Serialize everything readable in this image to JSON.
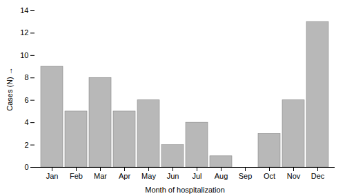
{
  "chart_data": {
    "type": "bar",
    "categories": [
      "Jan",
      "Feb",
      "Mar",
      "Apr",
      "May",
      "Jun",
      "Jul",
      "Aug",
      "Sep",
      "Oct",
      "Nov",
      "Dec"
    ],
    "values": [
      9,
      5,
      8,
      5,
      6,
      2,
      4,
      1,
      0,
      3,
      6,
      13
    ],
    "color": "#b8b8b8",
    "xlabel": "Month of hospitalization",
    "ylabel": "Cases (N)",
    "ylim": [
      0,
      14
    ],
    "yticks": [
      0,
      2,
      4,
      6,
      8,
      10,
      12,
      14
    ],
    "grid": false
  }
}
